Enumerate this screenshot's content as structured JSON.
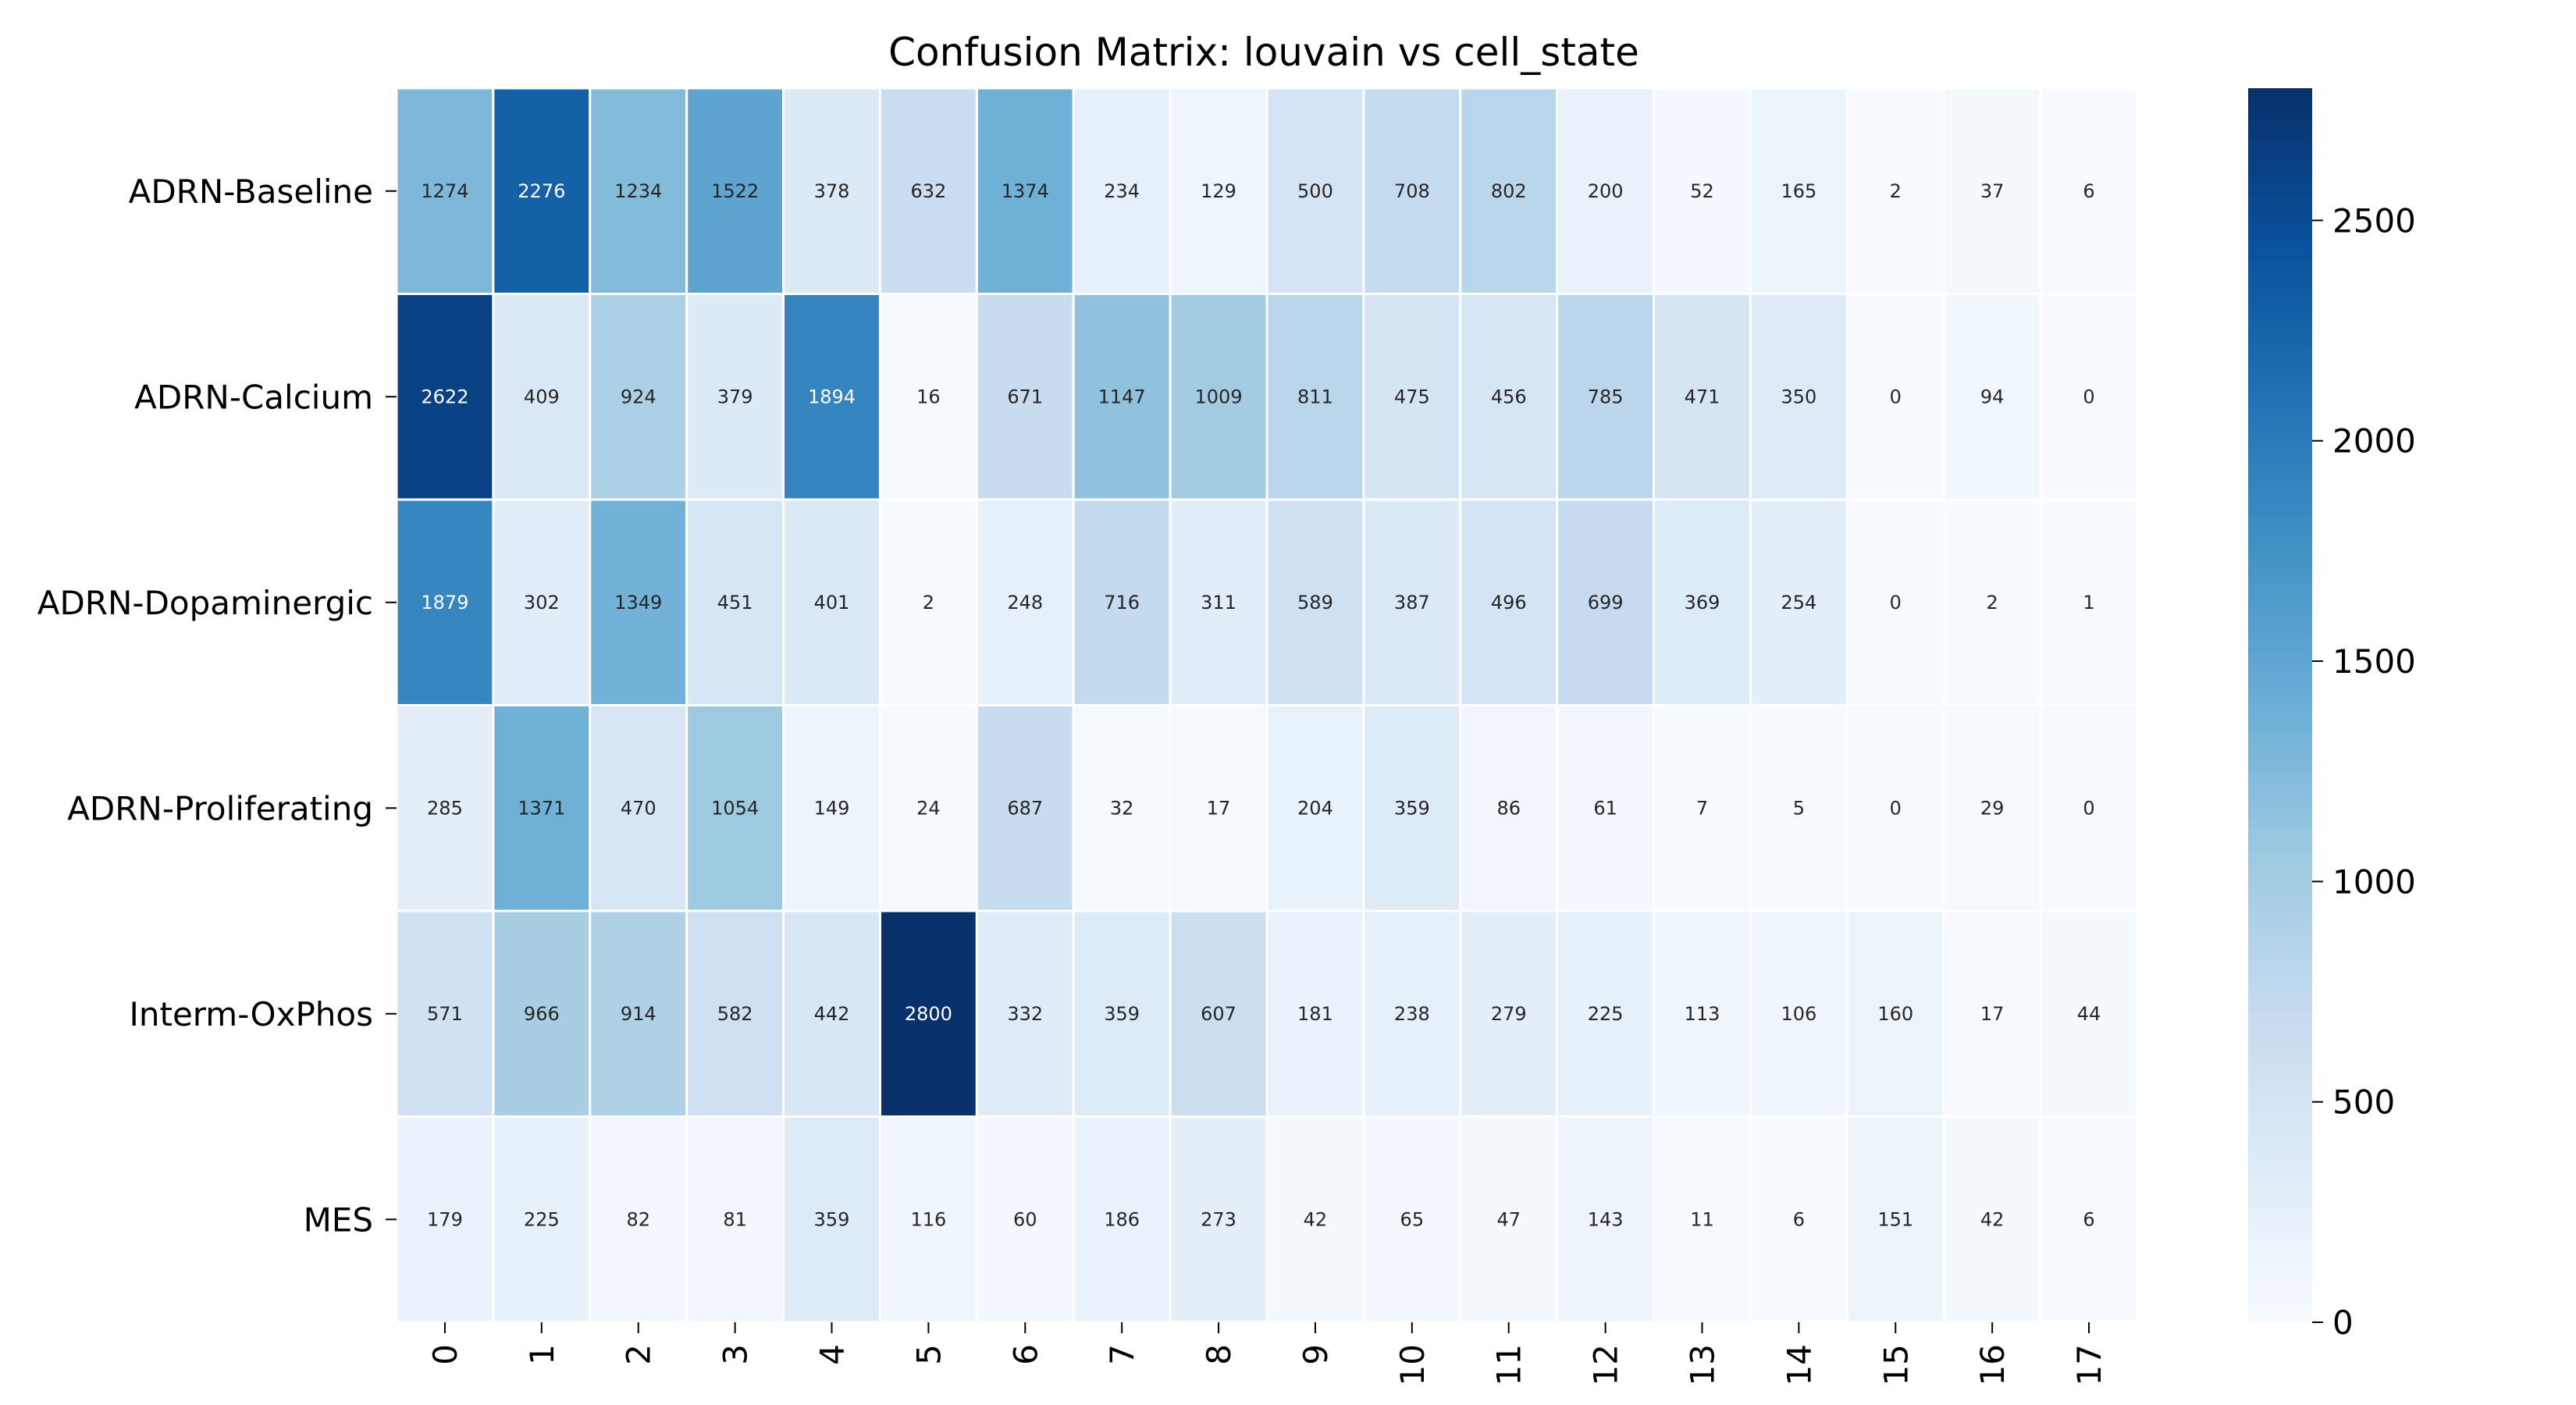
{
  "chart_data": {
    "type": "heatmap",
    "title": "Confusion Matrix: louvain vs cell_state",
    "xlabel": "",
    "ylabel": "",
    "rows": [
      "ADRN-Baseline",
      "ADRN-Calcium",
      "ADRN-Dopaminergic",
      "ADRN-Proliferating",
      "Interm-OxPhos",
      "MES"
    ],
    "columns": [
      "0",
      "1",
      "2",
      "3",
      "4",
      "5",
      "6",
      "7",
      "8",
      "9",
      "10",
      "11",
      "12",
      "13",
      "14",
      "15",
      "16",
      "17"
    ],
    "values": [
      [
        1274,
        2276,
        1234,
        1522,
        378,
        632,
        1374,
        234,
        129,
        500,
        708,
        802,
        200,
        52,
        165,
        2,
        37,
        6
      ],
      [
        2622,
        409,
        924,
        379,
        1894,
        16,
        671,
        1147,
        1009,
        811,
        475,
        456,
        785,
        471,
        350,
        0,
        94,
        0
      ],
      [
        1879,
        302,
        1349,
        451,
        401,
        2,
        248,
        716,
        311,
        589,
        387,
        496,
        699,
        369,
        254,
        0,
        2,
        1
      ],
      [
        285,
        1371,
        470,
        1054,
        149,
        24,
        687,
        32,
        17,
        204,
        359,
        86,
        61,
        7,
        5,
        0,
        29,
        0
      ],
      [
        571,
        966,
        914,
        582,
        442,
        2800,
        332,
        359,
        607,
        181,
        238,
        279,
        225,
        113,
        106,
        160,
        17,
        44
      ],
      [
        179,
        225,
        82,
        81,
        359,
        116,
        60,
        186,
        273,
        42,
        65,
        47,
        143,
        11,
        6,
        151,
        42,
        6
      ]
    ],
    "colormap": "Blues",
    "value_range": [
      0,
      2800
    ],
    "colorbar_ticks": [
      0,
      500,
      1000,
      1500,
      2000,
      2500
    ],
    "annotations": true,
    "grid_line_color": "#ffffff"
  }
}
